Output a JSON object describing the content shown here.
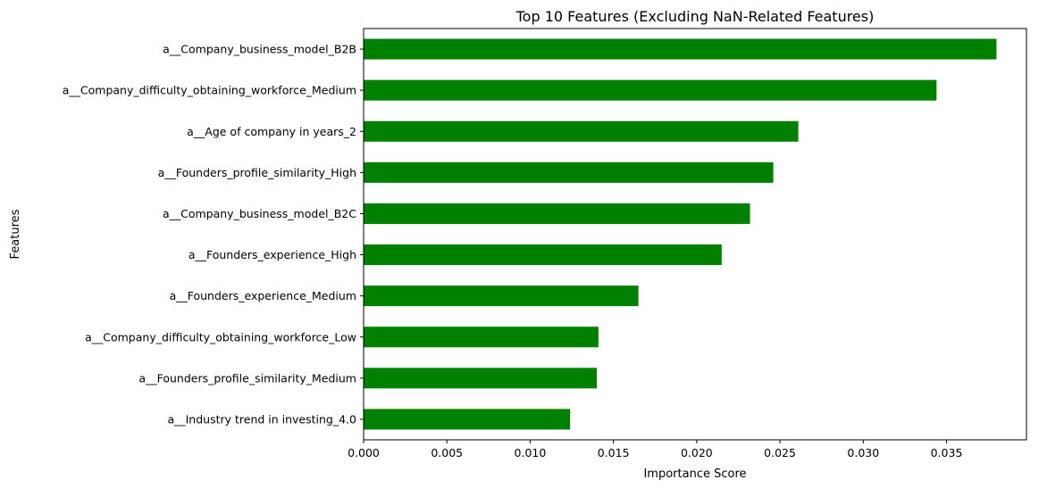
{
  "chart_data": {
    "type": "bar",
    "orientation": "horizontal",
    "title": "Top 10 Features (Excluding NaN-Related Features)",
    "xlabel": "Importance Score",
    "ylabel": "Features",
    "xlim": [
      0,
      0.0398
    ],
    "xticks": [
      0.0,
      0.005,
      0.01,
      0.015,
      0.02,
      0.025,
      0.03,
      0.035
    ],
    "xtick_labels": [
      "0.000",
      "0.005",
      "0.010",
      "0.015",
      "0.020",
      "0.025",
      "0.030",
      "0.035"
    ],
    "grid": false,
    "bar_color": "#008000",
    "categories": [
      "a__Company_business_model_B2B",
      "a__Company_difficulty_obtaining_workforce_Medium",
      "a__Age of company in years_2",
      "a__Founders_profile_similarity_High",
      "a__Company_business_model_B2C",
      "a__Founders_experience_High",
      "a__Founders_experience_Medium",
      "a__Company_difficulty_obtaining_workforce_Low",
      "a__Founders_profile_similarity_Medium",
      "a__Industry trend in investing_4.0"
    ],
    "values": [
      0.038,
      0.0344,
      0.0261,
      0.0246,
      0.0232,
      0.0215,
      0.0165,
      0.0141,
      0.014,
      0.0124
    ]
  }
}
